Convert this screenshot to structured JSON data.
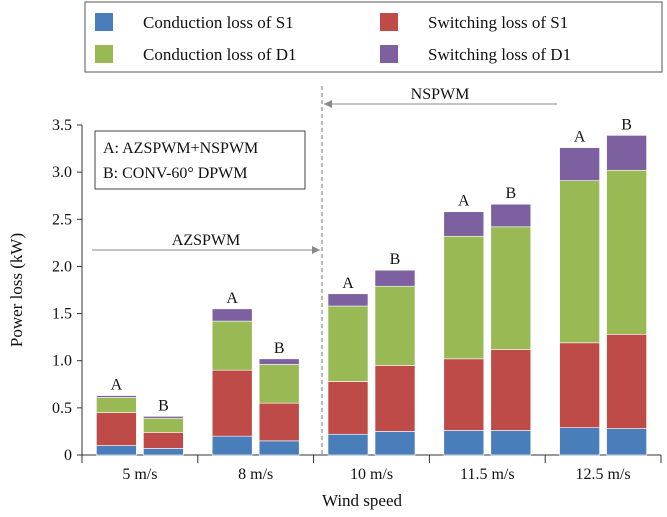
{
  "chart_data": {
    "type": "bar",
    "subtype": "grouped-stacked",
    "xlabel": "Wind speed",
    "ylabel": "Power loss (kW)",
    "ylim": [
      0,
      3.5
    ],
    "yticks": [
      "0",
      "0.5",
      "1.0",
      "1.5",
      "2.0",
      "2.5",
      "3.0",
      "3.5"
    ],
    "categories": [
      "5 m/s",
      "8 m/s",
      "10 m/s",
      "11.5 m/s",
      "12.5 m/s"
    ],
    "bar_labels": [
      "A",
      "B"
    ],
    "grid": false,
    "legend_position": "top",
    "series": [
      {
        "name": "Conduction loss of S1",
        "color": "#4a7ebb",
        "values": {
          "A": [
            0.1,
            0.2,
            0.22,
            0.26,
            0.29
          ],
          "B": [
            0.07,
            0.15,
            0.25,
            0.26,
            0.28
          ]
        }
      },
      {
        "name": "Switching loss of S1",
        "color": "#be4b48",
        "values": {
          "A": [
            0.35,
            0.7,
            0.56,
            0.76,
            0.9
          ],
          "B": [
            0.17,
            0.4,
            0.7,
            0.86,
            1.0
          ]
        }
      },
      {
        "name": "Conduction loss of D1",
        "color": "#98b954",
        "values": {
          "A": [
            0.16,
            0.52,
            0.8,
            1.3,
            1.72
          ],
          "B": [
            0.15,
            0.41,
            0.84,
            1.3,
            1.74
          ]
        }
      },
      {
        "name": "Switching loss of D1",
        "color": "#7d60a0",
        "values": {
          "A": [
            0.02,
            0.13,
            0.13,
            0.26,
            0.35
          ],
          "B": [
            0.02,
            0.06,
            0.17,
            0.24,
            0.37
          ]
        }
      }
    ],
    "annotations": {
      "legend_box_lines": [
        "A: AZSPWM+NSPWM",
        "B: CONV-60° DPWM"
      ],
      "left_region": "AZSPWM",
      "right_region": "NSPWM"
    }
  }
}
